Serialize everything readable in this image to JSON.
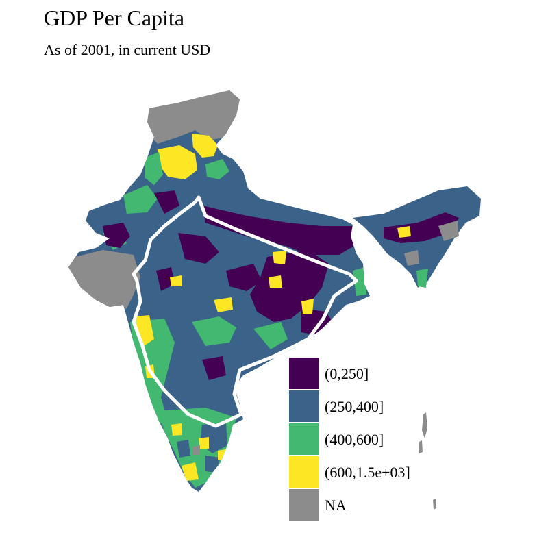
{
  "title": "GDP Per Capita",
  "subtitle": "As of 2001, in current USD",
  "colors": {
    "c1": "#440154",
    "c2": "#3b638a",
    "c3": "#43b870",
    "c4": "#fde725",
    "na": "#8c8c8c",
    "border": "#ffffff"
  },
  "legend": {
    "items": [
      {
        "label": "(0,250]",
        "color_key": "c1"
      },
      {
        "label": "(250,400]",
        "color_key": "c2"
      },
      {
        "label": "(400,600]",
        "color_key": "c3"
      },
      {
        "label": "(600,1.5e+03]",
        "color_key": "c4"
      },
      {
        "label": "NA",
        "color_key": "na"
      }
    ]
  }
}
